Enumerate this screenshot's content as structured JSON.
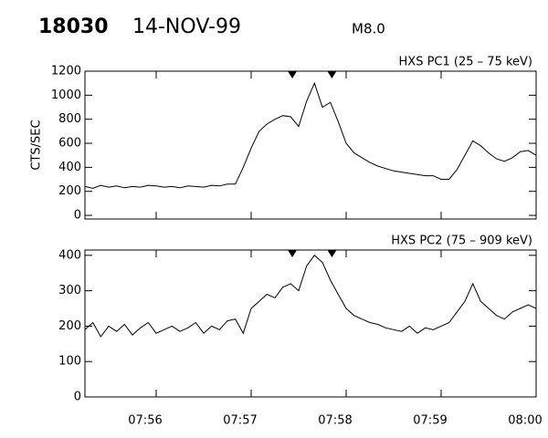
{
  "header": {
    "id": "18030",
    "date": "14-NOV-99",
    "flare_class": "M8.0"
  },
  "chart_data": [
    {
      "type": "line",
      "label": "HXS PC1 (25 – 75 keV)",
      "ylabel": "CTS/SEC",
      "x": [
        28515,
        28520,
        28525,
        28530,
        28535,
        28540,
        28545,
        28550,
        28555,
        28560,
        28565,
        28570,
        28575,
        28580,
        28585,
        28590,
        28595,
        28600,
        28605,
        28610,
        28615,
        28620,
        28625,
        28630,
        28635,
        28640,
        28645,
        28650,
        28655,
        28660,
        28665,
        28670,
        28675,
        28680,
        28685,
        28690,
        28695,
        28700,
        28705,
        28710,
        28715,
        28720,
        28725,
        28730,
        28735,
        28740,
        28745,
        28750,
        28755,
        28760,
        28765,
        28770,
        28775,
        28780,
        28785,
        28790,
        28795,
        28800
      ],
      "series": [
        {
          "name": "PC1",
          "color": "#000000",
          "values": [
            240,
            225,
            250,
            235,
            245,
            230,
            240,
            235,
            250,
            245,
            235,
            240,
            230,
            245,
            240,
            235,
            250,
            245,
            260,
            260,
            400,
            560,
            700,
            760,
            800,
            830,
            820,
            740,
            950,
            1100,
            900,
            940,
            780,
            600,
            520,
            480,
            440,
            410,
            390,
            370,
            360,
            350,
            340,
            330,
            330,
            300,
            300,
            380,
            500,
            620,
            580,
            520,
            470,
            450,
            480,
            530,
            540,
            500
          ]
        }
      ],
      "markers_x": [
        28646,
        28671
      ],
      "xlim": [
        28515,
        28800
      ],
      "xticks": [
        28560,
        28620,
        28680,
        28740,
        28800
      ],
      "ylim": [
        -30,
        1200
      ],
      "yticks": [
        0,
        200,
        400,
        600,
        800,
        1000,
        1200
      ]
    },
    {
      "type": "line",
      "label": "HXS PC2 (75 – 909 keV)",
      "x": [
        28515,
        28520,
        28525,
        28530,
        28535,
        28540,
        28545,
        28550,
        28555,
        28560,
        28565,
        28570,
        28575,
        28580,
        28585,
        28590,
        28595,
        28600,
        28605,
        28610,
        28615,
        28620,
        28625,
        28630,
        28635,
        28640,
        28645,
        28650,
        28655,
        28660,
        28665,
        28670,
        28675,
        28680,
        28685,
        28690,
        28695,
        28700,
        28705,
        28710,
        28715,
        28720,
        28725,
        28730,
        28735,
        28740,
        28745,
        28750,
        28755,
        28760,
        28765,
        28770,
        28775,
        28780,
        28785,
        28790,
        28795,
        28800
      ],
      "series": [
        {
          "name": "PC2",
          "color": "#000000",
          "values": [
            190,
            210,
            170,
            200,
            185,
            205,
            175,
            195,
            210,
            180,
            190,
            200,
            185,
            195,
            210,
            180,
            200,
            190,
            215,
            220,
            180,
            250,
            270,
            290,
            280,
            310,
            320,
            300,
            370,
            400,
            380,
            330,
            290,
            250,
            230,
            220,
            210,
            205,
            195,
            190,
            185,
            200,
            180,
            195,
            190,
            200,
            210,
            240,
            270,
            320,
            270,
            250,
            230,
            220,
            240,
            250,
            260,
            250
          ]
        }
      ],
      "markers_x": [
        28646,
        28671
      ],
      "xlim": [
        28515,
        28800
      ],
      "xticks": [
        {
          "value": 28560,
          "label": "07:56"
        },
        {
          "value": 28620,
          "label": "07:57"
        },
        {
          "value": 28680,
          "label": "07:58"
        },
        {
          "value": 28740,
          "label": "07:59"
        },
        {
          "value": 28800,
          "label": "08:00"
        }
      ],
      "ylim": [
        0,
        415
      ],
      "yticks": [
        0,
        100,
        200,
        300,
        400
      ]
    }
  ]
}
